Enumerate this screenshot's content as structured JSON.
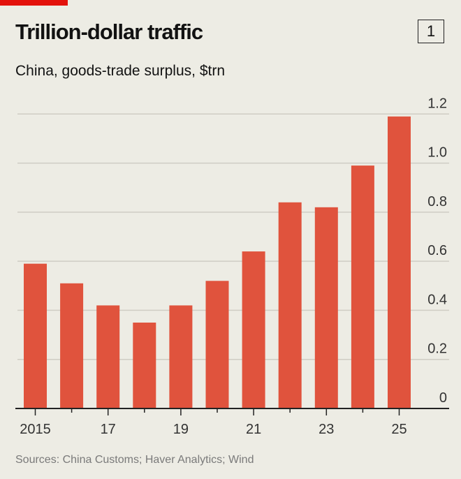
{
  "header": {
    "title": "Trillion-dollar traffic",
    "chart_number": "1",
    "subtitle": "China, goods-trade surplus, $trn"
  },
  "footer": {
    "source": "Sources: China Customs; Haver Analytics; Wind"
  },
  "colors": {
    "bar": "#e0533d",
    "accent": "#e3120b",
    "background": "#edece4"
  },
  "chart_data": {
    "type": "bar",
    "title": "Trillion-dollar traffic",
    "subtitle": "China, goods-trade surplus, $trn",
    "categories": [
      "2015",
      "2016",
      "2017",
      "2018",
      "2019",
      "2020",
      "2021",
      "2022",
      "2023",
      "2024",
      "2025"
    ],
    "x_tick_labels": [
      "2015",
      "17",
      "19",
      "21",
      "23",
      "25"
    ],
    "values": [
      0.59,
      0.51,
      0.42,
      0.35,
      0.42,
      0.52,
      0.64,
      0.84,
      0.82,
      0.99,
      1.19
    ],
    "ylim": [
      0,
      1.2
    ],
    "y_ticks": [
      "0",
      "0.2",
      "0.4",
      "0.6",
      "0.8",
      "1.0",
      "1.2"
    ],
    "y_axis_side": "right",
    "grid": true
  }
}
